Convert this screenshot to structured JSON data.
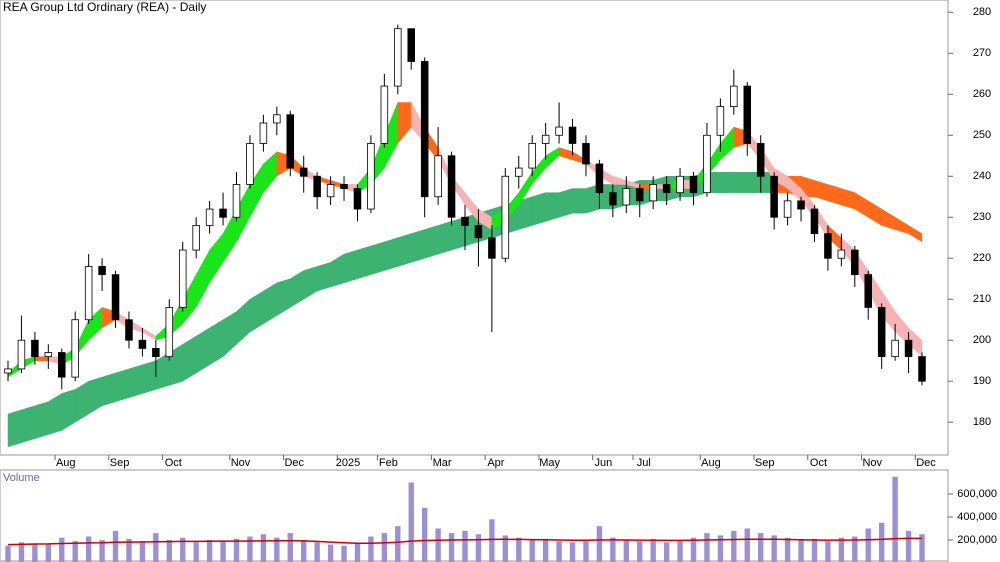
{
  "chart_data": [
    {
      "type": "candlestick",
      "title": "REA Group Ltd Ordinary (REA) - Daily",
      "categories": [
        null,
        null,
        null,
        null,
        "Aug",
        null,
        null,
        null,
        "Sep",
        null,
        null,
        null,
        "Oct",
        null,
        null,
        null,
        null,
        "Nov",
        null,
        null,
        null,
        "Dec",
        null,
        null,
        null,
        "2025",
        null,
        null,
        "Feb",
        null,
        null,
        null,
        "Mar",
        null,
        null,
        null,
        "Apr",
        null,
        null,
        null,
        "May",
        null,
        null,
        null,
        "Jun",
        null,
        null,
        "Jul",
        null,
        null,
        null,
        null,
        "Aug",
        null,
        null,
        null,
        "Sep",
        null,
        null,
        null,
        "Oct",
        null,
        null,
        null,
        "Nov",
        null,
        null,
        null,
        "Dec"
      ],
      "open": [
        192,
        193,
        200,
        196,
        197,
        191,
        205,
        218,
        216,
        205,
        200,
        198,
        196,
        208,
        222,
        228,
        232,
        230,
        238,
        248,
        253,
        255,
        242,
        240,
        235,
        238,
        237,
        232,
        248,
        262,
        276,
        268,
        235,
        245,
        230,
        228,
        225,
        220,
        240,
        242,
        248,
        250,
        252,
        248,
        243,
        236,
        233,
        237,
        234,
        238,
        236,
        240,
        236,
        250,
        257,
        262,
        248,
        240,
        230,
        234,
        232,
        226,
        220,
        222,
        216,
        208,
        196,
        200,
        196
      ],
      "high": [
        195,
        206,
        202,
        199,
        198,
        207,
        221,
        220,
        217,
        207,
        203,
        200,
        210,
        224,
        230,
        234,
        236,
        241,
        250,
        255,
        257,
        256,
        245,
        241,
        240,
        240,
        238,
        250,
        265,
        277,
        276,
        269,
        252,
        246,
        233,
        232,
        228,
        242,
        245,
        250,
        253,
        258,
        254,
        250,
        244,
        238,
        240,
        238,
        240,
        240,
        242,
        241,
        253,
        259,
        266,
        263,
        250,
        241,
        236,
        235,
        233,
        228,
        226,
        223,
        217,
        209,
        204,
        202,
        197
      ],
      "low": [
        190,
        192,
        194,
        193,
        188,
        190,
        204,
        212,
        203,
        198,
        196,
        191,
        195,
        207,
        220,
        226,
        228,
        229,
        237,
        246,
        250,
        240,
        236,
        232,
        233,
        234,
        229,
        231,
        247,
        260,
        266,
        230,
        233,
        228,
        222,
        218,
        202,
        219,
        237,
        240,
        244,
        248,
        245,
        240,
        232,
        230,
        231,
        230,
        232,
        233,
        234,
        233,
        235,
        246,
        255,
        245,
        236,
        227,
        228,
        229,
        224,
        217,
        218,
        213,
        205,
        193,
        195,
        192,
        189
      ],
      "close": [
        193,
        200,
        196,
        197,
        191,
        205,
        218,
        216,
        205,
        200,
        198,
        196,
        208,
        222,
        228,
        232,
        230,
        238,
        248,
        253,
        255,
        242,
        240,
        235,
        238,
        237,
        232,
        248,
        262,
        276,
        268,
        235,
        245,
        230,
        228,
        225,
        220,
        240,
        242,
        248,
        250,
        252,
        248,
        243,
        236,
        233,
        237,
        234,
        238,
        236,
        240,
        236,
        250,
        257,
        262,
        248,
        240,
        230,
        234,
        232,
        226,
        220,
        222,
        216,
        208,
        196,
        200,
        196,
        190
      ],
      "up_fill": "#ffffff",
      "down_fill": "#000000",
      "wick_color": "#000000",
      "fast_ribbon": {
        "upper": [
          192,
          195,
          196,
          196,
          196,
          198,
          205,
          208,
          207,
          205,
          203,
          201,
          204,
          210,
          216,
          222,
          226,
          232,
          238,
          243,
          246,
          245,
          242,
          240,
          239,
          238,
          238,
          242,
          250,
          258,
          258,
          252,
          247,
          240,
          236,
          232,
          230,
          232,
          236,
          241,
          245,
          247,
          246,
          244,
          242,
          240,
          239,
          238,
          238,
          238,
          239,
          239,
          243,
          248,
          252,
          251,
          247,
          242,
          240,
          237,
          233,
          228,
          225,
          222,
          217,
          212,
          207,
          203,
          200
        ],
        "lower": [
          191,
          193,
          195,
          195,
          194,
          196,
          200,
          203,
          205,
          203,
          202,
          200,
          201,
          204,
          208,
          214,
          219,
          224,
          230,
          236,
          240,
          242,
          240,
          239,
          238,
          237,
          236,
          238,
          242,
          248,
          252,
          248,
          244,
          238,
          233,
          229,
          227,
          229,
          233,
          238,
          242,
          245,
          244,
          243,
          240,
          238,
          238,
          237,
          237,
          237,
          237,
          237,
          240,
          244,
          247,
          248,
          244,
          239,
          237,
          234,
          230,
          225,
          222,
          218,
          212,
          206,
          202,
          199,
          196
        ],
        "up_color": "#19e619",
        "down_color": "#ff6a1a",
        "weak_color": "#f7b3b3"
      },
      "slow_ribbon": {
        "upper": [
          182,
          183,
          184,
          185,
          187,
          188,
          190,
          191,
          192,
          193,
          194,
          195,
          197,
          199,
          201,
          203,
          205,
          207,
          210,
          212,
          214,
          215,
          217,
          218,
          219,
          221,
          222,
          223,
          224,
          225,
          226,
          227,
          228,
          229,
          230,
          231,
          232,
          233,
          234,
          235,
          236,
          236,
          237,
          237,
          238,
          238,
          238,
          239,
          239,
          240,
          240,
          240,
          241,
          241,
          241,
          241,
          241,
          241,
          240,
          240,
          239,
          238,
          237,
          236,
          234,
          232,
          230,
          228,
          226
        ],
        "lower": [
          174,
          175,
          176,
          177,
          178,
          180,
          182,
          184,
          185,
          186,
          187,
          188,
          189,
          190,
          192,
          194,
          196,
          199,
          202,
          204,
          206,
          208,
          210,
          212,
          213,
          214,
          215,
          216,
          217,
          218,
          219,
          220,
          221,
          222,
          223,
          224,
          225,
          226,
          227,
          228,
          229,
          230,
          231,
          231,
          232,
          232,
          233,
          233,
          234,
          234,
          235,
          235,
          236,
          236,
          236,
          236,
          236,
          236,
          236,
          235,
          235,
          234,
          233,
          232,
          230,
          228,
          227,
          226,
          224
        ],
        "up_color": "#3cb371",
        "down_color": "#ff6a1a"
      },
      "ylim": [
        172,
        283
      ],
      "yticks": [
        180,
        190,
        200,
        210,
        220,
        230,
        240,
        250,
        260,
        270,
        280
      ]
    },
    {
      "type": "volume",
      "title": "Volume",
      "values": [
        150000,
        180000,
        170000,
        160000,
        220000,
        190000,
        230000,
        200000,
        280000,
        210000,
        190000,
        260000,
        200000,
        220000,
        180000,
        200000,
        190000,
        210000,
        230000,
        250000,
        220000,
        260000,
        200000,
        180000,
        160000,
        150000,
        170000,
        230000,
        260000,
        320000,
        700000,
        480000,
        300000,
        260000,
        280000,
        250000,
        380000,
        240000,
        220000,
        200000,
        210000,
        190000,
        180000,
        200000,
        320000,
        220000,
        200000,
        190000,
        210000,
        180000,
        200000,
        220000,
        260000,
        240000,
        280000,
        300000,
        260000,
        240000,
        220000,
        200000,
        210000,
        190000,
        220000,
        230000,
        300000,
        350000,
        750000,
        280000,
        250000
      ],
      "average": [
        160000,
        162000,
        165000,
        166000,
        170000,
        172000,
        175000,
        176000,
        180000,
        182000,
        183000,
        185000,
        186000,
        188000,
        188000,
        189000,
        190000,
        190000,
        191000,
        192000,
        193000,
        194000,
        192000,
        188000,
        182000,
        176000,
        172000,
        172000,
        175000,
        180000,
        190000,
        196000,
        198000,
        200000,
        201000,
        202000,
        205000,
        206000,
        205000,
        203000,
        202000,
        200000,
        198000,
        198000,
        200000,
        201000,
        200000,
        199000,
        198000,
        197000,
        197000,
        198000,
        200000,
        202000,
        204000,
        206000,
        207000,
        206000,
        204000,
        202000,
        200000,
        199000,
        199000,
        200000,
        202000,
        205000,
        212000,
        214000,
        214000
      ],
      "color": "#9b8fd8",
      "average_color": "#cc0000",
      "ylim": [
        0,
        800000
      ],
      "yticks": [
        {
          "value": 200000,
          "label": "200,000"
        },
        {
          "value": 400000,
          "label": "400,000"
        },
        {
          "value": 600000,
          "label": "600,000"
        }
      ]
    }
  ]
}
